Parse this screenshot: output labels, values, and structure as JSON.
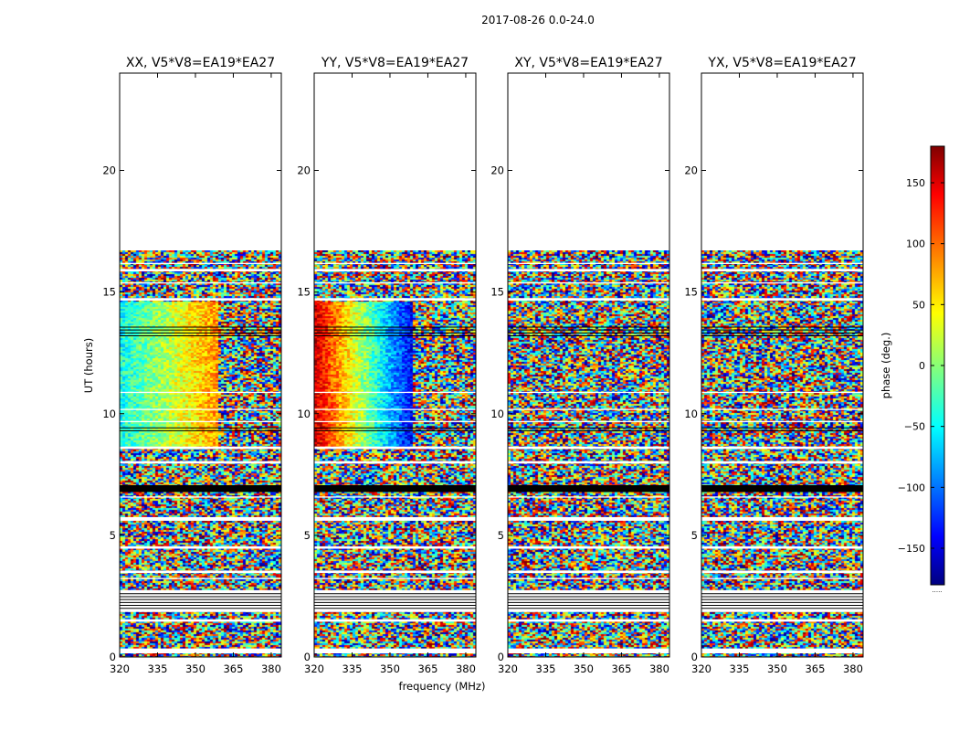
{
  "figure": {
    "title": "2017-08-26 0.0-24.0"
  },
  "chart_data": {
    "type": "heatmap",
    "shared_xlabel": "frequency (MHz)",
    "shared_ylabel": "UT (hours)",
    "xlim": [
      320,
      384
    ],
    "ylim": [
      0,
      24
    ],
    "xticks": [
      320,
      335,
      350,
      365,
      380
    ],
    "yticks": [
      0,
      5,
      10,
      15,
      20
    ],
    "data_time_range": [
      0.0,
      16.7
    ],
    "panels": [
      {
        "title": "XX, V5*V8=EA19*EA27",
        "pattern": "coherent-positive"
      },
      {
        "title": "YY, V5*V8=EA19*EA27",
        "pattern": "coherent-warm-to-cold"
      },
      {
        "title": "XY, V5*V8=EA19*EA27",
        "pattern": "noise"
      },
      {
        "title": "YX, V5*V8=EA19*EA27",
        "pattern": "noise"
      }
    ],
    "flagged_hours": [
      [
        0.15,
        0.35
      ],
      [
        1.45,
        1.55
      ],
      [
        1.85,
        2.75
      ],
      [
        3.2,
        3.25
      ],
      [
        3.45,
        3.55
      ],
      [
        4.45,
        4.55
      ],
      [
        5.6,
        5.75
      ],
      [
        6.55,
        6.6
      ],
      [
        6.8,
        7.05
      ],
      [
        7.95,
        8.05
      ],
      [
        8.55,
        8.65
      ],
      [
        9.65,
        9.7
      ],
      [
        10.15,
        10.2
      ],
      [
        10.85,
        10.9
      ],
      [
        14.65,
        14.75
      ],
      [
        15.35,
        15.4
      ],
      [
        15.85,
        15.95
      ],
      [
        16.15,
        16.2
      ]
    ],
    "colorbar": {
      "label": "phase (deg.)",
      "range": [
        -180,
        180
      ],
      "ticks": [
        150,
        100,
        50,
        0,
        -50,
        -100,
        -150
      ],
      "colormap": "jet",
      "colors": [
        "#00007f",
        "#0000ff",
        "#00ffff",
        "#ffff00",
        "#ff0000",
        "#7f0000"
      ],
      "under_label": "....."
    }
  }
}
